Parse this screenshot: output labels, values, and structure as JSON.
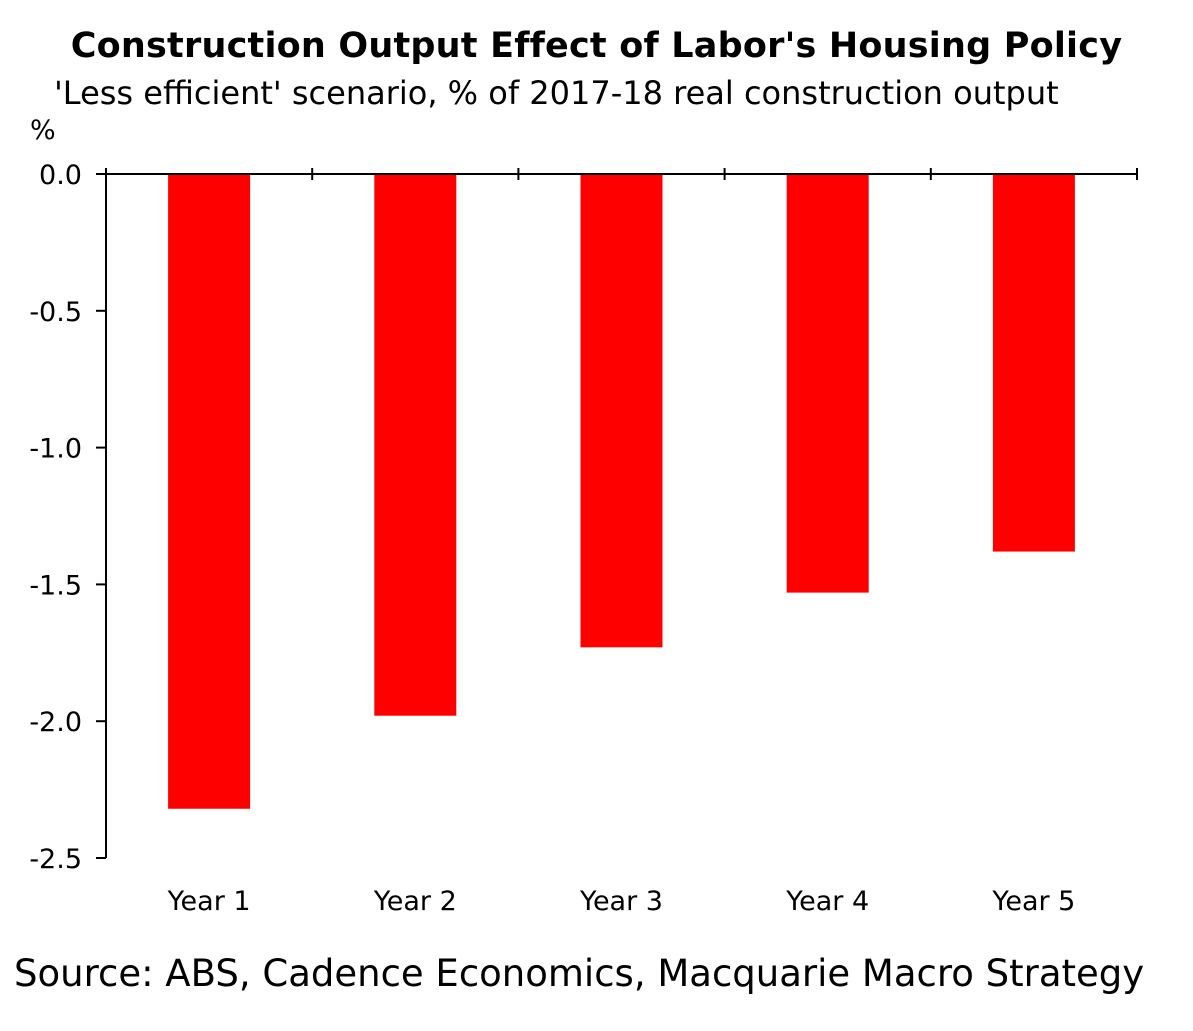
{
  "chart_data": {
    "type": "bar",
    "title": "Construction Output Effect of Labor's Housing Policy",
    "subtitle": "'Less efficient' scenario, % of 2017-18 real construction output",
    "ylabel": "%",
    "xlabel": "",
    "categories": [
      "Year 1",
      "Year 2",
      "Year 3",
      "Year 4",
      "Year 5"
    ],
    "values": [
      -2.32,
      -1.98,
      -1.73,
      -1.53,
      -1.38
    ],
    "ylim": [
      -2.5,
      0.0
    ],
    "yticks": [
      "0.0",
      "-0.5",
      "-1.0",
      "-1.5",
      "-2.0",
      "-2.5"
    ],
    "bar_color": "#ff0000",
    "grid": false,
    "legend": "none"
  },
  "source": "Source: ABS, Cadence Economics, Macquarie Macro Strategy"
}
